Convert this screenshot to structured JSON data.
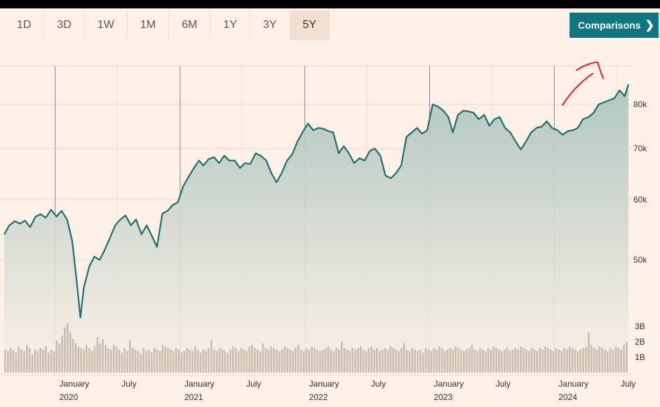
{
  "tabs": [
    {
      "label": "1D",
      "active": false
    },
    {
      "label": "3D",
      "active": false
    },
    {
      "label": "1W",
      "active": false
    },
    {
      "label": "1M",
      "active": false
    },
    {
      "label": "6M",
      "active": false
    },
    {
      "label": "1Y",
      "active": false
    },
    {
      "label": "3Y",
      "active": false
    },
    {
      "label": "5Y",
      "active": true
    }
  ],
  "comparisons_label": "Comparisons",
  "chevron_icon": "chevron-right-icon",
  "colors": {
    "line": "#1f6e6e",
    "fill_top": "#a8c4bc",
    "volume": "#cbbdb0",
    "accent": "#0d7680",
    "annotation": "#e8202a"
  },
  "chart_data": {
    "type": "area",
    "price_axis": {
      "scale": "log",
      "ticks": [
        {
          "value": 50000,
          "label": "50k"
        },
        {
          "value": 60000,
          "label": "60k"
        },
        {
          "value": 70000,
          "label": "70k"
        },
        {
          "value": 80000,
          "label": "80k"
        }
      ]
    },
    "volume_axis": {
      "ticks": [
        {
          "value": 1,
          "label": "1B"
        },
        {
          "value": 2,
          "label": "2B"
        },
        {
          "value": 3,
          "label": "3B"
        }
      ]
    },
    "x_labels": [
      {
        "date": "2020-01-01",
        "month": "January",
        "year": "2020"
      },
      {
        "date": "2020-07-01",
        "month": "July",
        "year": ""
      },
      {
        "date": "2021-01-01",
        "month": "January",
        "year": "2021"
      },
      {
        "date": "2021-07-01",
        "month": "July",
        "year": ""
      },
      {
        "date": "2022-01-01",
        "month": "January",
        "year": "2022"
      },
      {
        "date": "2022-07-01",
        "month": "July",
        "year": ""
      },
      {
        "date": "2023-01-01",
        "month": "January",
        "year": "2023"
      },
      {
        "date": "2023-07-01",
        "month": "July",
        "year": ""
      },
      {
        "date": "2024-01-01",
        "month": "January",
        "year": "2024"
      },
      {
        "date": "2024-07-01",
        "month": "July",
        "year": ""
      }
    ],
    "price_series": [
      [
        "2019-08-05",
        54000
      ],
      [
        "2019-08-20",
        55500
      ],
      [
        "2019-09-05",
        56200
      ],
      [
        "2019-09-20",
        55800
      ],
      [
        "2019-10-05",
        56300
      ],
      [
        "2019-10-20",
        55200
      ],
      [
        "2019-11-05",
        57000
      ],
      [
        "2019-11-20",
        57400
      ],
      [
        "2019-12-05",
        56800
      ],
      [
        "2019-12-20",
        58200
      ],
      [
        "2020-01-05",
        57000
      ],
      [
        "2020-01-20",
        58000
      ],
      [
        "2020-02-05",
        56500
      ],
      [
        "2020-02-20",
        53000
      ],
      [
        "2020-03-05",
        46500
      ],
      [
        "2020-03-15",
        42000
      ],
      [
        "2020-03-25",
        46000
      ],
      [
        "2020-04-10",
        49000
      ],
      [
        "2020-04-25",
        50500
      ],
      [
        "2020-05-10",
        50000
      ],
      [
        "2020-05-25",
        51500
      ],
      [
        "2020-06-10",
        53500
      ],
      [
        "2020-06-25",
        55500
      ],
      [
        "2020-07-10",
        56500
      ],
      [
        "2020-07-25",
        57200
      ],
      [
        "2020-08-10",
        55500
      ],
      [
        "2020-08-25",
        56500
      ],
      [
        "2020-09-10",
        54000
      ],
      [
        "2020-09-25",
        55500
      ],
      [
        "2020-10-10",
        53800
      ],
      [
        "2020-10-25",
        52000
      ],
      [
        "2020-11-10",
        57500
      ],
      [
        "2020-11-25",
        58000
      ],
      [
        "2020-12-10",
        59000
      ],
      [
        "2020-12-25",
        59500
      ],
      [
        "2021-01-10",
        62500
      ],
      [
        "2021-01-25",
        64200
      ],
      [
        "2021-02-10",
        66000
      ],
      [
        "2021-02-25",
        67500
      ],
      [
        "2021-03-10",
        66500
      ],
      [
        "2021-03-25",
        67800
      ],
      [
        "2021-04-10",
        68200
      ],
      [
        "2021-04-25",
        67000
      ],
      [
        "2021-05-10",
        68500
      ],
      [
        "2021-05-25",
        67500
      ],
      [
        "2021-06-10",
        67500
      ],
      [
        "2021-06-25",
        66000
      ],
      [
        "2021-07-10",
        67000
      ],
      [
        "2021-07-25",
        66800
      ],
      [
        "2021-08-10",
        69000
      ],
      [
        "2021-08-25",
        68500
      ],
      [
        "2021-09-10",
        67500
      ],
      [
        "2021-09-25",
        65000
      ],
      [
        "2021-10-10",
        63200
      ],
      [
        "2021-10-25",
        65000
      ],
      [
        "2021-11-10",
        67500
      ],
      [
        "2021-11-25",
        68800
      ],
      [
        "2021-12-10",
        71500
      ],
      [
        "2021-12-25",
        73500
      ],
      [
        "2022-01-10",
        75500
      ],
      [
        "2022-01-25",
        74000
      ],
      [
        "2022-02-10",
        74500
      ],
      [
        "2022-02-25",
        74300
      ],
      [
        "2022-03-10",
        73800
      ],
      [
        "2022-03-25",
        73500
      ],
      [
        "2022-04-10",
        69000
      ],
      [
        "2022-04-25",
        70500
      ],
      [
        "2022-05-10",
        69000
      ],
      [
        "2022-05-25",
        67000
      ],
      [
        "2022-06-10",
        68000
      ],
      [
        "2022-06-25",
        67500
      ],
      [
        "2022-07-10",
        69500
      ],
      [
        "2022-07-25",
        70000
      ],
      [
        "2022-08-10",
        68500
      ],
      [
        "2022-08-25",
        64500
      ],
      [
        "2022-09-10",
        64000
      ],
      [
        "2022-09-25",
        65000
      ],
      [
        "2022-10-10",
        66500
      ],
      [
        "2022-10-25",
        72500
      ],
      [
        "2022-11-10",
        73500
      ],
      [
        "2022-11-25",
        74500
      ],
      [
        "2022-12-10",
        73200
      ],
      [
        "2022-12-25",
        74000
      ],
      [
        "2023-01-10",
        80000
      ],
      [
        "2023-01-25",
        79500
      ],
      [
        "2023-02-10",
        78500
      ],
      [
        "2023-02-25",
        77000
      ],
      [
        "2023-03-10",
        73500
      ],
      [
        "2023-03-25",
        77500
      ],
      [
        "2023-04-10",
        78500
      ],
      [
        "2023-04-25",
        78300
      ],
      [
        "2023-05-10",
        78000
      ],
      [
        "2023-05-25",
        76500
      ],
      [
        "2023-06-10",
        77500
      ],
      [
        "2023-06-25",
        75000
      ],
      [
        "2023-07-10",
        76500
      ],
      [
        "2023-07-25",
        77000
      ],
      [
        "2023-08-10",
        74500
      ],
      [
        "2023-08-25",
        73500
      ],
      [
        "2023-09-10",
        71500
      ],
      [
        "2023-09-25",
        69800
      ],
      [
        "2023-10-10",
        71500
      ],
      [
        "2023-10-25",
        73500
      ],
      [
        "2023-11-10",
        74500
      ],
      [
        "2023-11-25",
        74800
      ],
      [
        "2023-12-10",
        76000
      ],
      [
        "2023-12-25",
        74500
      ],
      [
        "2024-01-10",
        74000
      ],
      [
        "2024-01-25",
        73000
      ],
      [
        "2024-02-10",
        73800
      ],
      [
        "2024-02-25",
        74000
      ],
      [
        "2024-03-10",
        74500
      ],
      [
        "2024-03-25",
        76500
      ],
      [
        "2024-04-10",
        77000
      ],
      [
        "2024-04-25",
        78000
      ],
      [
        "2024-05-10",
        80000
      ],
      [
        "2024-05-25",
        80500
      ],
      [
        "2024-06-10",
        81000
      ],
      [
        "2024-06-25",
        81500
      ],
      [
        "2024-07-10",
        83500
      ],
      [
        "2024-07-25",
        82000
      ],
      [
        "2024-08-05",
        85000
      ]
    ],
    "volume_series": [
      1.5,
      1.4,
      1.6,
      1.5,
      1.3,
      1.7,
      1.5,
      1.4,
      1.8,
      1.6,
      1.2,
      1.5,
      1.4,
      1.6,
      1.5,
      1.7,
      1.3,
      1.5,
      1.4,
      2.1,
      1.9,
      2.4,
      2.9,
      3.2,
      2.6,
      2.2,
      1.9,
      1.7,
      1.6,
      1.5,
      1.8,
      1.6,
      1.4,
      1.7,
      2.3,
      1.9,
      2.2,
      1.8,
      1.6,
      1.5,
      1.8,
      1.7,
      1.5,
      1.3,
      1.6,
      1.4,
      2.1,
      1.6,
      1.5,
      1.4,
      1.2,
      1.6,
      1.4,
      1.5,
      1.3,
      1.6,
      1.5,
      1.4,
      1.8,
      1.7,
      1.6,
      1.5,
      1.4,
      1.6,
      1.5,
      1.3,
      1.4,
      1.6,
      1.5,
      1.4,
      1.7,
      1.5,
      1.3,
      1.5,
      1.4,
      1.6,
      2.1,
      1.5,
      1.4,
      1.6,
      1.5,
      1.4,
      1.3,
      1.5,
      1.7,
      1.6,
      1.4,
      1.6,
      1.5,
      1.4,
      1.7,
      1.8,
      1.6,
      1.5,
      1.4,
      1.9,
      1.6,
      1.5,
      1.7,
      1.6,
      1.5,
      1.4,
      1.5,
      1.7,
      1.6,
      1.5,
      1.4,
      1.6,
      1.8,
      1.5,
      1.4,
      1.6,
      1.5,
      1.7,
      1.6,
      1.5,
      1.4,
      1.5,
      1.6,
      1.7,
      1.5,
      1.4,
      1.6,
      1.5,
      2.0,
      1.6,
      1.5,
      1.4,
      1.6,
      1.5,
      1.6,
      1.7,
      1.5,
      1.4,
      1.6,
      1.7,
      1.5,
      1.6,
      1.4,
      1.5,
      1.6,
      1.5,
      1.7,
      1.6,
      1.5,
      1.4,
      1.6,
      1.9,
      1.5,
      1.4,
      1.6,
      1.5,
      1.4,
      1.5,
      1.3,
      1.6,
      1.5,
      1.4,
      1.6,
      1.5,
      1.7,
      1.6,
      1.4,
      1.5,
      1.6,
      1.5,
      1.7,
      1.6,
      1.5,
      1.4,
      1.5,
      1.6,
      1.8,
      1.5,
      1.4,
      1.6,
      1.5,
      1.4,
      1.6,
      1.5,
      1.7,
      1.6,
      1.5,
      1.4,
      1.5,
      1.6,
      1.4,
      1.5,
      1.6,
      1.5,
      1.7,
      1.6,
      1.5,
      1.4,
      1.6,
      1.5,
      1.4,
      1.6,
      1.5,
      1.7,
      1.6,
      1.5,
      1.4,
      1.6,
      1.5,
      1.4,
      1.6,
      1.5,
      1.7,
      1.6,
      1.5,
      1.4,
      1.5,
      1.6,
      1.7,
      2.6,
      1.8,
      1.6,
      1.5,
      1.7,
      1.6,
      1.5,
      1.4,
      1.6,
      1.5,
      1.7,
      1.6,
      1.5,
      1.8,
      2.0
    ],
    "annotation": "hand-drawn red arrow pointing up"
  }
}
